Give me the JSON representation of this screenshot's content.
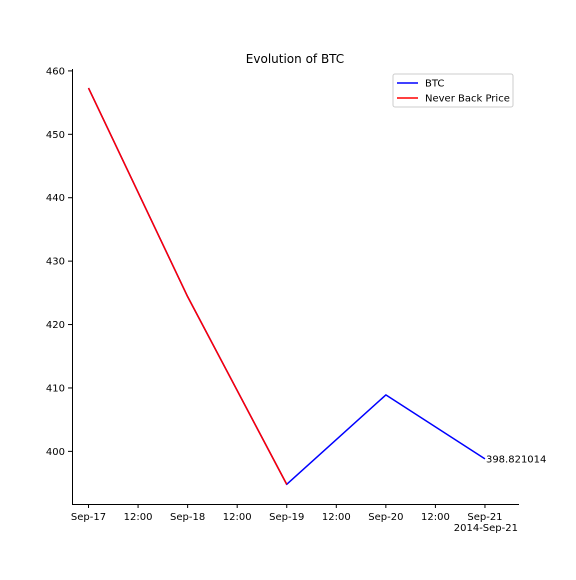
{
  "chart_data": {
    "type": "line",
    "title": "Evolution of BTC",
    "xlabel": "",
    "ylabel": "",
    "x": [
      "2014-09-17",
      "2014-09-18",
      "2014-09-19",
      "2014-09-20",
      "2014-09-21"
    ],
    "x_ticks": [
      "Sep-17",
      "12:00",
      "Sep-18",
      "12:00",
      "Sep-19",
      "12:00",
      "Sep-20",
      "12:00",
      "Sep-21"
    ],
    "x_offset_label": "2014-Sep-21",
    "xlim": [
      "2014-09-16T20:00",
      "2014-09-21T08:00"
    ],
    "y_ticks": [
      400,
      410,
      420,
      430,
      440,
      450,
      460
    ],
    "ylim": [
      391.7,
      460.3
    ],
    "grid": false,
    "legend": "top-right",
    "series": [
      {
        "name": "BTC",
        "color": "#0000ff",
        "x": [
          "2014-09-17",
          "2014-09-18",
          "2014-09-19",
          "2014-09-20",
          "2014-09-21"
        ],
        "values": [
          457.3,
          424.4,
          394.8,
          408.9,
          398.821014
        ]
      },
      {
        "name": "Never Back Price",
        "color": "#ff0000",
        "x": [
          "2014-09-17",
          "2014-09-18",
          "2014-09-19"
        ],
        "values": [
          457.3,
          424.4,
          394.8
        ]
      }
    ],
    "annotations": [
      {
        "text": "398.821014",
        "x": "2014-09-21",
        "y": 398.821014
      }
    ]
  }
}
